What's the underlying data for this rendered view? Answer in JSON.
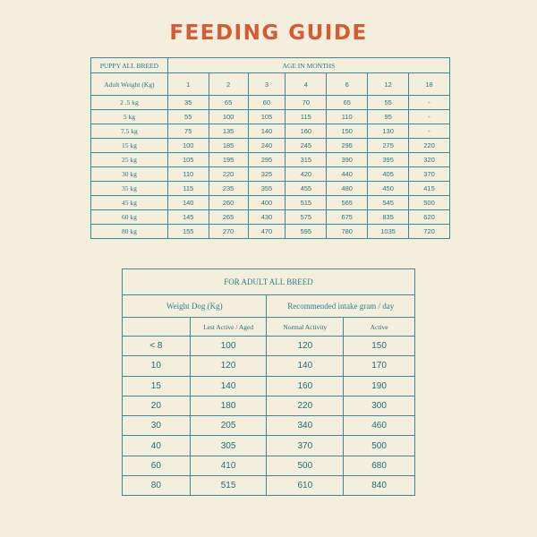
{
  "title": "FEEDING GUIDE",
  "puppy": {
    "breed_label": "PUPPY ALL BREED",
    "age_label": "AGE IN MONTHS",
    "weight_label": "Adult Weight (Kg)",
    "months": [
      "1",
      "2",
      "3",
      "4",
      "6",
      "12",
      "18"
    ],
    "rows": [
      {
        "weight": "2 .5 kg",
        "values": [
          "35",
          "65",
          "60",
          "70",
          "65",
          "55",
          "-"
        ]
      },
      {
        "weight": "5 kg",
        "values": [
          "55",
          "100",
          "105",
          "115",
          "110",
          "95",
          "-"
        ]
      },
      {
        "weight": "7.5 kg",
        "values": [
          "75",
          "135",
          "140",
          "160",
          "150",
          "130",
          "-"
        ]
      },
      {
        "weight": "15 kg",
        "values": [
          "100",
          "185",
          "240",
          "245",
          "295",
          "275",
          "220"
        ]
      },
      {
        "weight": "25 kg",
        "values": [
          "105",
          "195",
          "295",
          "315",
          "390",
          "395",
          "320"
        ]
      },
      {
        "weight": "30 kg",
        "values": [
          "110",
          "220",
          "325",
          "420",
          "440",
          "405",
          "370"
        ]
      },
      {
        "weight": "35 kg",
        "values": [
          "115",
          "235",
          "355",
          "455",
          "480",
          "450",
          "415"
        ]
      },
      {
        "weight": "45 kg",
        "values": [
          "140",
          "260",
          "400",
          "515",
          "565",
          "545",
          "500"
        ]
      },
      {
        "weight": "60 kg",
        "values": [
          "145",
          "265",
          "430",
          "575",
          "675",
          "835",
          "620"
        ]
      },
      {
        "weight": "80 kg",
        "values": [
          "155",
          "270",
          "470",
          "595",
          "780",
          "1035",
          "720"
        ]
      }
    ]
  },
  "adult": {
    "title": "FOR ADULT ALL BREED",
    "weight_label": "Weight Dog (Kg)",
    "intake_label": "Recommended intake gram / day",
    "sub_headers": [
      "Lest Active / Aged",
      "Normal Activity",
      "Active"
    ],
    "rows": [
      {
        "weight": "< 8",
        "values": [
          "100",
          "120",
          "150"
        ]
      },
      {
        "weight": "10",
        "values": [
          "120",
          "140",
          "170"
        ]
      },
      {
        "weight": "15",
        "values": [
          "140",
          "160",
          "190"
        ]
      },
      {
        "weight": "20",
        "values": [
          "180",
          "220",
          "300"
        ]
      },
      {
        "weight": "30",
        "values": [
          "205",
          "340",
          "460"
        ]
      },
      {
        "weight": "40",
        "values": [
          "305",
          "370",
          "500"
        ]
      },
      {
        "weight": "60",
        "values": [
          "410",
          "500",
          "680"
        ]
      },
      {
        "weight": "80",
        "values": [
          "515",
          "610",
          "840"
        ]
      }
    ]
  }
}
